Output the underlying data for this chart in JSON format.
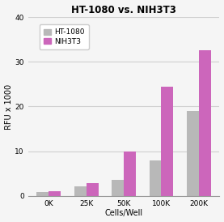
{
  "title": "HT-1080 vs. NIH3T3",
  "xlabel": "Cells/Well",
  "ylabel": "RFU x 1000",
  "categories": [
    "0K",
    "25K",
    "50K",
    "100K",
    "200K"
  ],
  "ht1080_values": [
    0.8,
    2.2,
    3.5,
    8.0,
    19.0
  ],
  "nih3t3_values": [
    1.0,
    2.8,
    10.0,
    24.5,
    32.5
  ],
  "ht1080_color": "#b8b8b8",
  "nih3t3_color": "#cc66bb",
  "ylim": [
    0,
    40
  ],
  "yticks": [
    0,
    10,
    20,
    30,
    40
  ],
  "bar_width": 0.32,
  "legend_labels": [
    "HT-1080",
    "NIH3T3"
  ],
  "title_fontsize": 8.5,
  "axis_fontsize": 7,
  "tick_fontsize": 6.5,
  "legend_fontsize": 6.5,
  "bg_color": "#f5f5f5",
  "grid_color": "#d0d0d0",
  "spine_color": "#999999"
}
